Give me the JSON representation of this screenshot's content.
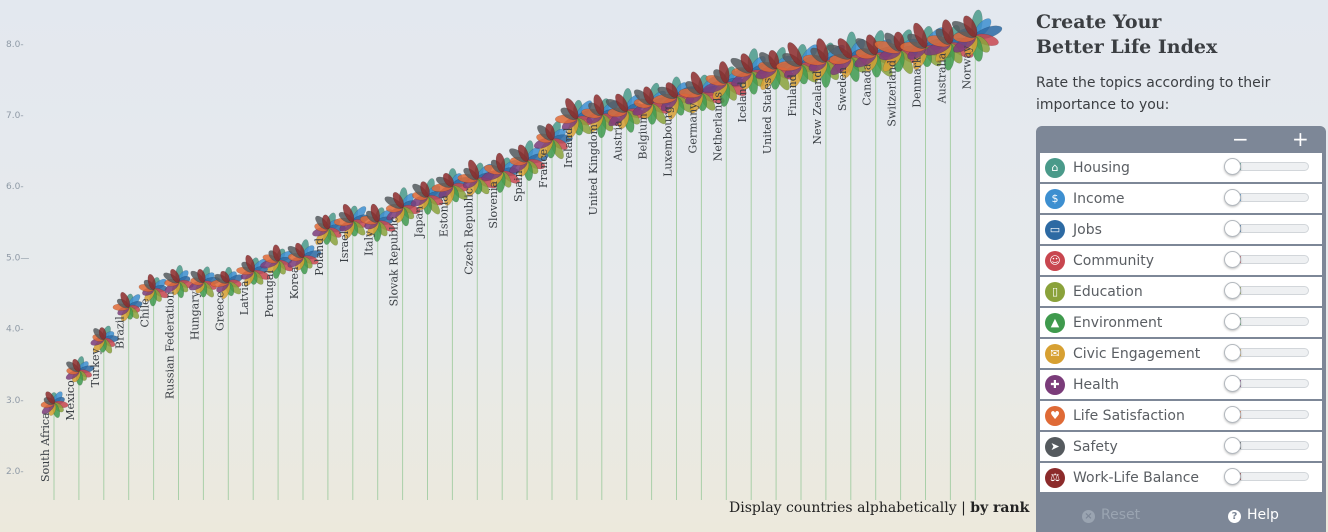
{
  "chart_data": {
    "type": "scatter",
    "title": "",
    "xlabel": "",
    "ylabel": "",
    "ylim": [
      1.7,
      8.5
    ],
    "yticks": [
      "2.0-",
      "3.0-",
      "4.0-",
      "5.0—",
      "6.0-",
      "7.0-",
      "8.0-"
    ],
    "ytick_values": [
      2.0,
      3.0,
      4.0,
      5.0,
      6.0,
      7.0,
      8.0
    ],
    "countries": [
      "South Africa",
      "Mexico",
      "Turkey",
      "Brazil",
      "Chile",
      "Russian Federation",
      "Hungary",
      "Greece",
      "Latvia",
      "Portugal",
      "Korea",
      "Poland",
      "Israel",
      "Italy",
      "Slovak Republic",
      "Japan",
      "Estonia",
      "Czech Republic",
      "Slovenia",
      "Spain",
      "France",
      "Ireland",
      "United Kingdom",
      "Austria",
      "Belgium",
      "Luxembourg",
      "Germany",
      "Netherlands",
      "Iceland",
      "United States",
      "Finland",
      "New Zealand",
      "Sweden",
      "Canada",
      "Switzerland",
      "Denmark",
      "Australia",
      "Norway"
    ],
    "values": [
      2.95,
      3.4,
      3.85,
      4.3,
      4.55,
      4.65,
      4.65,
      4.65,
      4.8,
      4.95,
      5.0,
      5.4,
      5.5,
      5.5,
      5.7,
      5.85,
      6.0,
      6.1,
      6.2,
      6.35,
      6.65,
      6.95,
      7.0,
      7.05,
      7.15,
      7.25,
      7.3,
      7.45,
      7.6,
      7.65,
      7.7,
      7.75,
      7.8,
      7.85,
      7.9,
      7.95,
      8.0,
      8.1
    ],
    "petal_colors": [
      "#4a9a8a",
      "#3d8fd0",
      "#2d6aa3",
      "#c8464f",
      "#8aa23b",
      "#3f9a4d",
      "#d7a032",
      "#7b3c7a",
      "#df6a36",
      "#555a5e",
      "#8c2b2b"
    ]
  },
  "sort_bar": {
    "prefix": "Display countries ",
    "alphabetically": "alphabetically",
    "sep": " | ",
    "by_rank": "by rank"
  },
  "panel": {
    "title_line1": "Create Your",
    "title_line2": "Better Life Index",
    "subtitle": "Rate the topics according to their importance to you:",
    "minus": "−",
    "plus": "+",
    "reset": "Reset",
    "help": "Help",
    "topics": [
      {
        "label": "Housing",
        "color": "#4a9a8a",
        "icon": "house-icon",
        "glyph": "⌂",
        "level": 0
      },
      {
        "label": "Income",
        "color": "#3d8fd0",
        "icon": "money-icon",
        "glyph": "$",
        "level": 0
      },
      {
        "label": "Jobs",
        "color": "#2d6aa3",
        "icon": "briefcase-icon",
        "glyph": "▭",
        "level": 0
      },
      {
        "label": "Community",
        "color": "#c8464f",
        "icon": "people-icon",
        "glyph": "☺",
        "level": 0
      },
      {
        "label": "Education",
        "color": "#8aa23b",
        "icon": "book-icon",
        "glyph": "▯",
        "level": 0
      },
      {
        "label": "Environment",
        "color": "#3f9a4d",
        "icon": "tree-icon",
        "glyph": "▲",
        "level": 0
      },
      {
        "label": "Civic Engagement",
        "color": "#d7a032",
        "icon": "ballot-icon",
        "glyph": "✉",
        "level": 0
      },
      {
        "label": "Health",
        "color": "#7b3c7a",
        "icon": "cross-icon",
        "glyph": "✚",
        "level": 0
      },
      {
        "label": "Life Satisfaction",
        "color": "#df6a36",
        "icon": "heart-icon",
        "glyph": "♥",
        "level": 0
      },
      {
        "label": "Safety",
        "color": "#555a5e",
        "icon": "runner-icon",
        "glyph": "➤",
        "level": 0
      },
      {
        "label": "Work-Life Balance",
        "color": "#8c2b2b",
        "icon": "scale-icon",
        "glyph": "⚖",
        "level": 0
      }
    ]
  }
}
